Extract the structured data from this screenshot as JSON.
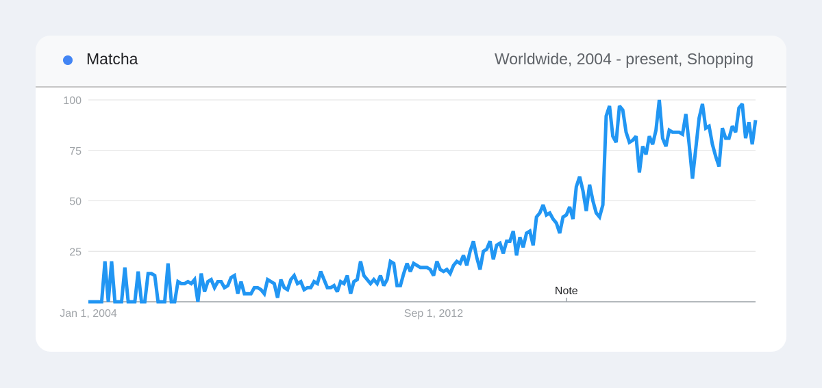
{
  "header": {
    "series_name": "Matcha",
    "context": "Worldwide, 2004 - present, Shopping"
  },
  "colors": {
    "series": "#2196f3",
    "legend_dot": "#4285f4"
  },
  "chart_data": {
    "type": "line",
    "title": "",
    "xlabel": "",
    "ylabel": "",
    "ylim": [
      0,
      100
    ],
    "yticks": [
      25,
      50,
      75,
      100
    ],
    "x_range": [
      "Jan 1, 2004",
      "Jun 1, 2024"
    ],
    "x_tick_labels": [
      "Jan 1, 2004",
      "Sep 1, 2012"
    ],
    "x_ticks_at": [
      "2004-01",
      "2012-09"
    ],
    "annotation": {
      "label": "Note",
      "x": "2016-01"
    },
    "grid": true,
    "series": [
      {
        "name": "Matcha",
        "start": "2004-01",
        "frequency": "monthly",
        "values": [
          0,
          0,
          0,
          0,
          0,
          20,
          0,
          20,
          0,
          0,
          0,
          17,
          0,
          0,
          0,
          15,
          0,
          0,
          14,
          14,
          13,
          0,
          0,
          0,
          19,
          0,
          0,
          10,
          9,
          9,
          10,
          9,
          11,
          0,
          14,
          5,
          10,
          11,
          7,
          10,
          10,
          7,
          8,
          12,
          13,
          4,
          10,
          4,
          4,
          4,
          7,
          7,
          6,
          4,
          11,
          10,
          9,
          2,
          11,
          7,
          6,
          11,
          13,
          9,
          10,
          6,
          7,
          7,
          10,
          9,
          15,
          11,
          7,
          7,
          8,
          5,
          10,
          9,
          13,
          4,
          10,
          11,
          20,
          13,
          11,
          9,
          11,
          9,
          13,
          8,
          11,
          20,
          19,
          8,
          8,
          14,
          19,
          15,
          19,
          18,
          17,
          17,
          17,
          16,
          13,
          20,
          16,
          15,
          16,
          14,
          18,
          20,
          19,
          23,
          18,
          25,
          30,
          22,
          16,
          25,
          26,
          30,
          21,
          28,
          29,
          24,
          30,
          30,
          35,
          23,
          32,
          27,
          34,
          35,
          28,
          42,
          44,
          48,
          43,
          44,
          41,
          39,
          34,
          42,
          43,
          47,
          41,
          57,
          62,
          55,
          45,
          58,
          50,
          44,
          42,
          48,
          92,
          97,
          82,
          79,
          97,
          95,
          84,
          79,
          80,
          82,
          64,
          77,
          73,
          82,
          78,
          85,
          100,
          81,
          77,
          85,
          84,
          84,
          84,
          83,
          93,
          78,
          61,
          76,
          91,
          98,
          86,
          87,
          78,
          72,
          67,
          86,
          81,
          81,
          87,
          84,
          96,
          98,
          81,
          89,
          78,
          90
        ]
      }
    ]
  }
}
